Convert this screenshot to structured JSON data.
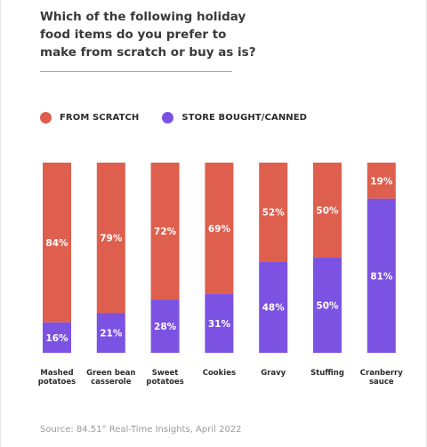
{
  "title": "Which of the following holiday food items do you prefer to make from scratch or buy as is?",
  "source": "Source: 84.51° Real-Time Insights, April 2022",
  "colors": {
    "scratch": "#de5f4d",
    "store": "#7c52e3",
    "label": "#ffffff",
    "axis_text": "#2b2b2b"
  },
  "chart_data": {
    "type": "bar",
    "stacked": true,
    "title": "Which of the following holiday food items do you prefer to make from scratch or buy as is?",
    "categories": [
      [
        "Mashed",
        "potatoes"
      ],
      [
        "Green bean",
        "casserole"
      ],
      [
        "Sweet",
        "potatoes"
      ],
      [
        "Cookies"
      ],
      [
        "Gravy"
      ],
      [
        "Stuffing"
      ],
      [
        "Cranberry",
        "sauce"
      ]
    ],
    "series": [
      {
        "name": "FROM SCRATCH",
        "values": [
          84,
          79,
          72,
          69,
          52,
          50,
          19
        ]
      },
      {
        "name": "STORE BOUGHT/CANNED",
        "values": [
          16,
          21,
          28,
          31,
          48,
          50,
          81
        ]
      }
    ],
    "value_suffix": "%",
    "ylim": [
      0,
      100
    ],
    "grid": false,
    "legend_position": "top-left"
  }
}
